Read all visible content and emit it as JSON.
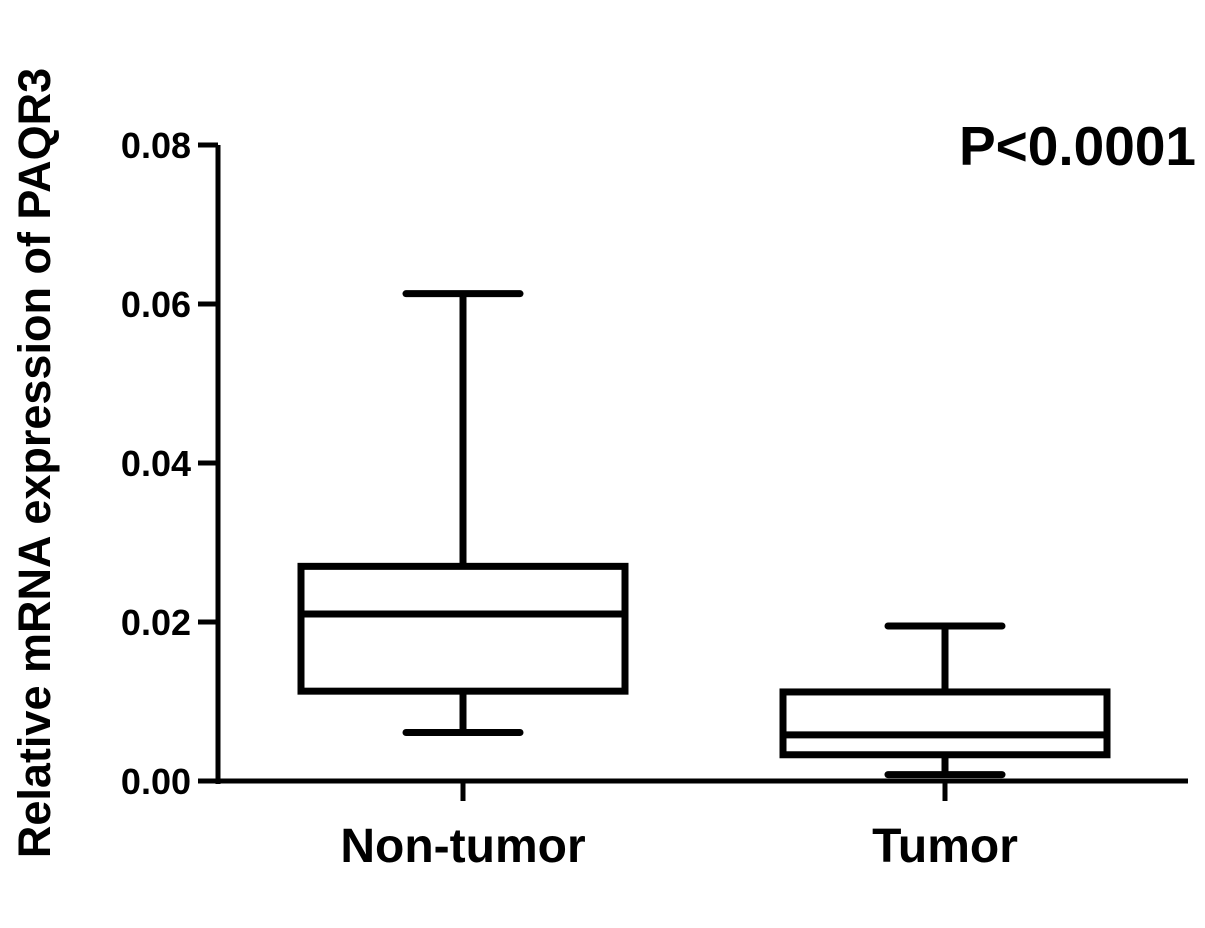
{
  "chart_data": {
    "type": "box",
    "categories": [
      "Non-tumor",
      "Tumor"
    ],
    "boxes": [
      {
        "name": "Non-tumor",
        "min": 0.0061,
        "q1": 0.0113,
        "median": 0.021,
        "q3": 0.027,
        "max": 0.0613
      },
      {
        "name": "Tumor",
        "min": 0.0008,
        "q1": 0.0033,
        "median": 0.0058,
        "q3": 0.0112,
        "max": 0.0195
      }
    ],
    "ylabel": "Relative mRNA expression of PAQR3",
    "xlabel": "",
    "ylim": [
      0,
      0.08
    ],
    "yticks": [
      "0.00",
      "0.02",
      "0.04",
      "0.06",
      "0.08"
    ],
    "ytick_values": [
      0,
      0.02,
      0.04,
      0.06,
      0.08
    ],
    "annotation": "P<0.0001",
    "grid": false,
    "color": "#000000"
  }
}
